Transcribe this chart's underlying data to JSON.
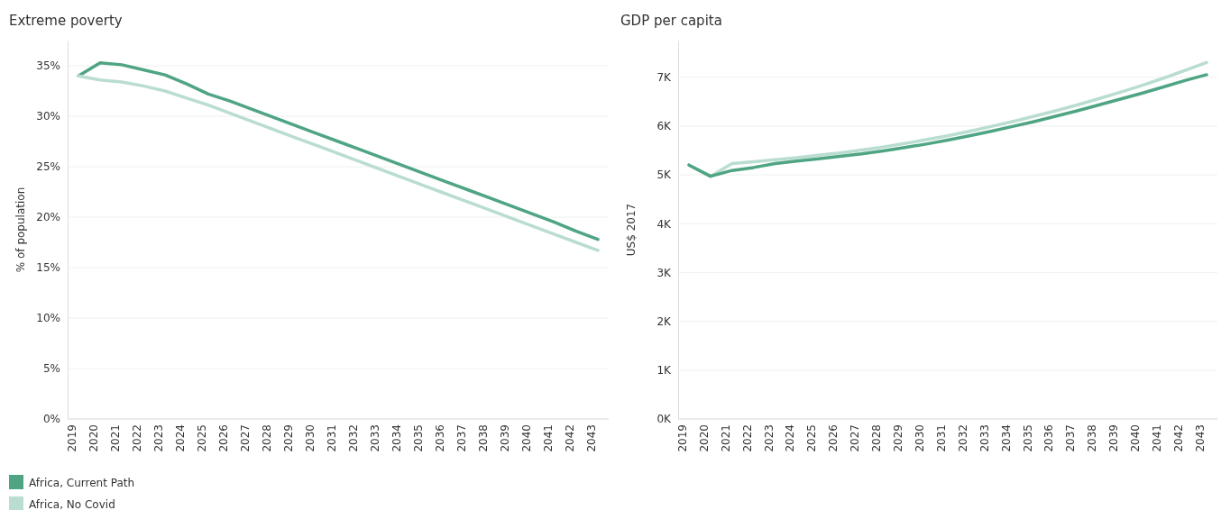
{
  "chart_data": [
    {
      "type": "line",
      "title": "Extreme poverty",
      "ylabel": "% of population",
      "categories": [
        "2019",
        "2020",
        "2021",
        "2022",
        "2023",
        "2024",
        "2025",
        "2026",
        "2027",
        "2028",
        "2029",
        "2030",
        "2031",
        "2032",
        "2033",
        "2034",
        "2035",
        "2036",
        "2037",
        "2038",
        "2039",
        "2040",
        "2041",
        "2042",
        "2043"
      ],
      "series": [
        {
          "name": "Africa, Current Path",
          "color": "#4fa583",
          "values": [
            34.0,
            35.3,
            35.1,
            34.6,
            34.1,
            33.2,
            32.2,
            31.5,
            30.7,
            29.9,
            29.1,
            28.3,
            27.5,
            26.7,
            25.9,
            25.1,
            24.3,
            23.5,
            22.7,
            21.9,
            21.1,
            20.3,
            19.5,
            18.6,
            17.8
          ]
        },
        {
          "name": "Africa, No Covid",
          "color": "#b9ddd0",
          "values": [
            34.0,
            33.6,
            33.4,
            33.0,
            32.5,
            31.8,
            31.1,
            30.3,
            29.5,
            28.7,
            27.9,
            27.1,
            26.3,
            25.5,
            24.7,
            23.9,
            23.1,
            22.3,
            21.5,
            20.7,
            19.9,
            19.1,
            18.3,
            17.5,
            16.7
          ]
        }
      ],
      "ylim": [
        0,
        37.5
      ],
      "yticks": [
        {
          "value": 0,
          "label": "0%"
        },
        {
          "value": 5,
          "label": "5%"
        },
        {
          "value": 10,
          "label": "10%"
        },
        {
          "value": 15,
          "label": "15%"
        },
        {
          "value": 20,
          "label": "20%"
        },
        {
          "value": 25,
          "label": "25%"
        },
        {
          "value": 30,
          "label": "30%"
        },
        {
          "value": 35,
          "label": "35%"
        }
      ],
      "grid": "y",
      "legend": "bottom left",
      "marker": "none",
      "line_style": "solid"
    },
    {
      "type": "line",
      "title": "GDP per capita",
      "ylabel": "US$ 2017",
      "categories": [
        "2019",
        "2020",
        "2021",
        "2022",
        "2023",
        "2024",
        "2025",
        "2026",
        "2027",
        "2028",
        "2029",
        "2030",
        "2031",
        "2032",
        "2033",
        "2034",
        "2035",
        "2036",
        "2037",
        "2038",
        "2039",
        "2040",
        "2041",
        "2042",
        "2043"
      ],
      "series": [
        {
          "color": "#b9ddd0",
          "values": [
            5200,
            4970,
            5230,
            5270,
            5310,
            5350,
            5400,
            5450,
            5510,
            5570,
            5640,
            5720,
            5800,
            5890,
            5990,
            6090,
            6200,
            6310,
            6430,
            6560,
            6690,
            6830,
            6980,
            7140,
            7300
          ]
        },
        {
          "color": "#4fa583",
          "values": [
            5200,
            4970,
            5090,
            5150,
            5230,
            5280,
            5330,
            5380,
            5430,
            5490,
            5560,
            5630,
            5710,
            5800,
            5890,
            5990,
            6090,
            6200,
            6310,
            6430,
            6550,
            6670,
            6800,
            6930,
            7050
          ]
        }
      ],
      "ylim": [
        0,
        7750
      ],
      "yticks": [
        {
          "value": 0,
          "label": "0K"
        },
        {
          "value": 1000,
          "label": "1K"
        },
        {
          "value": 2000,
          "label": "2K"
        },
        {
          "value": 3000,
          "label": "3K"
        },
        {
          "value": 4000,
          "label": "4K"
        },
        {
          "value": 5000,
          "label": "5K"
        },
        {
          "value": 6000,
          "label": "6K"
        },
        {
          "value": 7000,
          "label": "7K"
        }
      ],
      "grid": "y",
      "marker": "none",
      "line_style": "solid"
    }
  ]
}
